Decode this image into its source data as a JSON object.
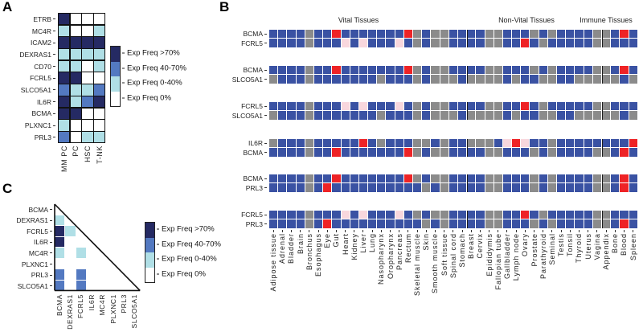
{
  "colors": {
    "D": "#252a63",
    "M": "#5379c1",
    "L": "#b0dfe6",
    "W": "#ffffff",
    "B": "#3a52a3",
    "G": "#8b8b8b",
    "R": "#ee2326",
    "P": "#f8d7dd",
    "grid_line": "#111111",
    "separator": "#1c1c1c"
  },
  "legend": {
    "labels": [
      "Exp Freq >70%",
      "Exp Freq 40-70%",
      "Exp Freq 0-40%",
      "Exp Freq 0%"
    ],
    "swatches": [
      "D",
      "M",
      "L",
      "W"
    ]
  },
  "panelA": {
    "label": "A",
    "row_labels": [
      "ETRB",
      "MC4R",
      "ICAM2",
      "DEXRAS1",
      "CD70",
      "FCRL5",
      "SLCO5A1",
      "IL6R",
      "BCMA",
      "PLXNC1",
      "PRL3"
    ],
    "col_labels": [
      "MM PC",
      "PC",
      "HSC",
      "T-NK"
    ],
    "cells": [
      "DWWW",
      "LWWL",
      "DDDD",
      "LLLL",
      "LLWL",
      "DDWW",
      "MLLM",
      "DLMD",
      "DDWW",
      "LWWW",
      "MWLL"
    ]
  },
  "panelB": {
    "label": "B",
    "group_titles": [
      "Vital Tissues",
      "Non-Vital Tissues",
      "Immune Tissues"
    ],
    "group_boundaries": [
      22,
      37
    ],
    "tissues": [
      "Adipose tissue",
      "Adrenal",
      "Bladder",
      "Brain",
      "Bronchus",
      "Esophagus",
      "Eye",
      "Gut",
      "Heart",
      "Kidney",
      "Liver",
      "Lung",
      "Nasopharynx",
      "Oropharynx",
      "Pancreas",
      "Rectum",
      "Skeletal muscle",
      "Skin",
      "Smooth muscle",
      "Soft tissue",
      "Spinal cord",
      "Stomach",
      "Breast",
      "Cervix",
      "Epididymis",
      "Fallopian tube",
      "Gallbladder",
      "Lymph node",
      "Ovary",
      "Prostate",
      "Parathyroid",
      "Seminal",
      "Testis",
      "Tonsil",
      "Thyroid",
      "Uterus",
      "Vagina",
      "Appendix",
      "Bone",
      "Blood",
      "Spleen"
    ],
    "gene_rows": {
      "BCMA": "BBBBGBBRBBBBBBBRGBGGBBBBGGBBBGBGBBBBGGBRB",
      "FCRL5": "BBBBGBBBPBPBBBPBGBGGBBBBGGBBRBGBBBBBGGBBB",
      "SLCO5A1": "GBBBGBBBBBBBGBBBGBGGGBGGGGBGBBGGBBGGGGGBG",
      "IL6R": "GBBBGBBBBBRBGBBBGGBGBBGGGBPRPBBGBBBBBBBBR",
      "PRL3": "BBBBGBRBBBBBBBBBBGBGBBBBGGBBBGBGBBBBGGBRB"
    },
    "pairs": [
      {
        "genes": [
          "BCMA",
          "FCRL5"
        ]
      },
      {
        "genes": [
          "BCMA",
          "SLCO5A1"
        ]
      },
      {
        "genes": [
          "FCRL5",
          "SLCO5A1"
        ]
      },
      {
        "genes": [
          "IL6R",
          "BCMA"
        ]
      },
      {
        "genes": [
          "BCMA",
          "PRL3"
        ]
      },
      {
        "genes": [
          "FCRL5",
          "PRL3"
        ]
      }
    ]
  },
  "panelC": {
    "label": "C",
    "genes": [
      "BCMA",
      "DEXRAS1",
      "FCRL5",
      "IL6R",
      "MC4R",
      "PLXNC1",
      "PRL3",
      "SLCO5A1"
    ],
    "triangle_rows": [
      "",
      "L",
      "DL",
      "DWW",
      "LWLW",
      "WWWWW",
      "MWMWWW",
      "MWMWWWW"
    ]
  },
  "chart_data": [
    {
      "type": "heatmap",
      "title": "Panel A: expression frequency by cell type",
      "rows": [
        "ETRB",
        "MC4R",
        "ICAM2",
        "DEXRAS1",
        "CD70",
        "FCRL5",
        "SLCO5A1",
        "IL6R",
        "BCMA",
        "PLXNC1",
        "PRL3"
      ],
      "columns": [
        "MM PC",
        "PC",
        "HSC",
        "T-NK"
      ],
      "value_legend": {
        "D": "Exp Freq >70%",
        "M": "Exp Freq 40-70%",
        "L": "Exp Freq 0-40%",
        "W": "Exp Freq 0%"
      },
      "values": [
        "DWWW",
        "LWWL",
        "DDDD",
        "LLLL",
        "LLWL",
        "DDWW",
        "MLLM",
        "DLMD",
        "DDWW",
        "LWWW",
        "MWLL"
      ]
    },
    {
      "type": "heatmap",
      "title": "Panel B: paired gene expression across 41 tissues (B=expressed blue, G=gray not detected, R=red high, P=pink low)",
      "groups": {
        "Vital Tissues": [
          1,
          22
        ],
        "Non-Vital Tissues": [
          23,
          37
        ],
        "Immune Tissues": [
          38,
          41
        ]
      },
      "columns": [
        "Adipose tissue",
        "Adrenal",
        "Bladder",
        "Brain",
        "Bronchus",
        "Esophagus",
        "Eye",
        "Gut",
        "Heart",
        "Kidney",
        "Liver",
        "Lung",
        "Nasopharynx",
        "Oropharynx",
        "Pancreas",
        "Rectum",
        "Skeletal muscle",
        "Skin",
        "Smooth muscle",
        "Soft tissue",
        "Spinal cord",
        "Stomach",
        "Breast",
        "Cervix",
        "Epididymis",
        "Fallopian tube",
        "Gallbladder",
        "Lymph node",
        "Ovary",
        "Prostate",
        "Parathyroid",
        "Seminal",
        "Testis",
        "Tonsil",
        "Thyroid",
        "Uterus",
        "Vagina",
        "Appendix",
        "Bone",
        "Blood",
        "Spleen"
      ],
      "row_pairs": [
        [
          "BCMA",
          "FCRL5"
        ],
        [
          "BCMA",
          "SLCO5A1"
        ],
        [
          "FCRL5",
          "SLCO5A1"
        ],
        [
          "IL6R",
          "BCMA"
        ],
        [
          "BCMA",
          "PRL3"
        ],
        [
          "FCRL5",
          "PRL3"
        ]
      ]
    },
    {
      "type": "heatmap",
      "title": "Panel C: lower-triangle gene x gene co-expression frequency",
      "rows": [
        "BCMA",
        "DEXRAS1",
        "FCRL5",
        "IL6R",
        "MC4R",
        "PLXNC1",
        "PRL3",
        "SLCO5A1"
      ],
      "columns": [
        "BCMA",
        "DEXRAS1",
        "FCRL5",
        "IL6R",
        "MC4R",
        "PLXNC1",
        "PRL3",
        "SLCO5A1"
      ],
      "values": [
        "",
        "L",
        "DL",
        "DWW",
        "LWLW",
        "WWWWW",
        "MWMWWW",
        "MWMWWWW"
      ]
    }
  ]
}
